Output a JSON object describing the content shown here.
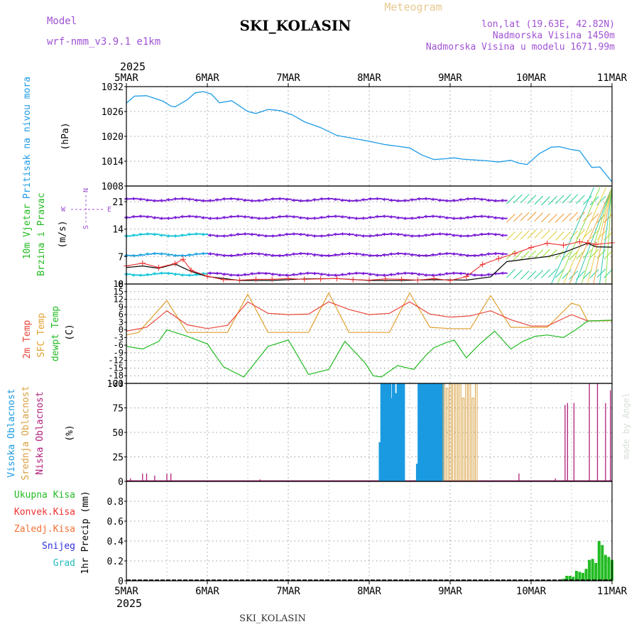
{
  "header": {
    "model_label": "Model",
    "model_name": "wrf-nmm_v3.9.1 e1km",
    "title": "SKI_KOLASIN",
    "subtitle": "Meteogram",
    "lonlat": "lon,lat (19.63E, 42.82N)",
    "elevation": "Nadmorska Visina 1450m",
    "model_elevation": "Nadmorska Visina u modelu 1671.99m",
    "credit": "made by Angel",
    "footer": "SKI_KOLASIN"
  },
  "colors": {
    "pressure": "#1e9be6",
    "wind_speed": "#ee3030",
    "wind_gust_line": "#000000",
    "wind_arrows": "#7a1fd6",
    "t2m": "#e8473a",
    "sfc_temp": "#e0a030",
    "dewpoint": "#22bb22",
    "high_cloud": "#1a9ae0",
    "mid_cloud": "#d9a040",
    "low_cloud": "#b0207a",
    "precip": "#22bb22"
  },
  "chart_data": [
    {
      "type": "line",
      "panel": "pressure",
      "x_tick_labels": [
        "5MAR",
        "6MAR",
        "7MAR",
        "8MAR",
        "9MAR",
        "10MAR",
        "11MAR"
      ],
      "top_year": "2025",
      "ylabel": [
        "Pritisak na nivou mora",
        "(hPa)"
      ],
      "ylim": [
        1008,
        1032
      ],
      "yticks": [
        1008,
        1014,
        1020,
        1026,
        1032
      ],
      "grid": true,
      "series": [
        {
          "name": "Pritisak na nivou mora",
          "x_days": [
            0,
            0.1,
            0.25,
            0.45,
            0.55,
            0.6,
            0.75,
            0.85,
            0.95,
            1.05,
            1.15,
            1.3,
            1.5,
            1.6,
            1.75,
            1.9,
            2.05,
            2.2,
            2.4,
            2.6,
            2.8,
            3.0,
            3.2,
            3.35,
            3.5,
            3.65,
            3.8,
            3.95,
            4.05,
            4.15,
            4.3,
            4.45,
            4.6,
            4.75,
            4.85,
            4.95,
            5.1,
            5.25,
            5.35,
            5.5,
            5.6,
            5.75,
            5.85,
            6.0
          ],
          "values": [
            1028,
            1029.7,
            1029.8,
            1028.5,
            1027.3,
            1027.1,
            1028.8,
            1030.5,
            1030.8,
            1030.2,
            1028.1,
            1028.6,
            1026,
            1025.5,
            1026.5,
            1026.2,
            1025.2,
            1023.5,
            1022.1,
            1020.2,
            1019.5,
            1018.8,
            1018,
            1017.6,
            1017.2,
            1015.5,
            1014.4,
            1014.6,
            1014.8,
            1014.5,
            1014.3,
            1014.1,
            1013.8,
            1014.2,
            1013.5,
            1013.2,
            1015.8,
            1017.4,
            1017.5,
            1016.8,
            1016.5,
            1012.5,
            1012.6,
            1009
          ]
        }
      ]
    },
    {
      "type": "line",
      "panel": "wind",
      "ylabel": [
        "10m Vjetar",
        "Brzina i Pravac",
        "(m/s)"
      ],
      "direction_legend": [
        "N",
        "S",
        "W",
        "E"
      ],
      "ylim": [
        0,
        25
      ],
      "yticks": [
        0,
        7,
        14,
        21
      ],
      "grid": true,
      "series": [
        {
          "name": "10m Vjetar Brzina",
          "x_days": [
            0,
            0.2,
            0.4,
            0.6,
            0.7,
            0.8,
            1.0,
            1.2,
            1.4,
            1.6,
            1.8,
            2.0,
            2.2,
            2.4,
            2.6,
            2.8,
            3.0,
            3.2,
            3.4,
            3.6,
            3.8,
            4.0,
            4.2,
            4.4,
            4.6,
            4.8,
            5.0,
            5.2,
            5.4,
            5.6,
            5.7,
            5.8,
            6.0
          ],
          "values": [
            4.6,
            5.3,
            4.2,
            5.2,
            6.3,
            3.5,
            2,
            1.1,
            1,
            1.2,
            1.2,
            1.4,
            1.2,
            1.3,
            1.4,
            1.1,
            1,
            1.3,
            1.2,
            1,
            1.4,
            0.9,
            1.9,
            5,
            6.5,
            7.8,
            9.3,
            10.4,
            9.9,
            10.8,
            10.5,
            10.1,
            10.5
          ]
        },
        {
          "name": "Udari",
          "x_days": [
            0,
            0.2,
            0.4,
            0.6,
            0.8,
            1.0,
            1.4,
            1.8,
            2.2,
            2.6,
            3.0,
            3.4,
            3.8,
            4.2,
            4.5,
            4.7,
            5.0,
            5.2,
            5.4,
            5.6,
            5.7,
            5.8,
            6.0
          ],
          "values": [
            4.2,
            4.6,
            4,
            5.1,
            3.2,
            1.9,
            0.9,
            0.9,
            1.3,
            1.4,
            0.9,
            0.9,
            1.1,
            1,
            1.8,
            5.7,
            6.5,
            7,
            8,
            9.6,
            10.4,
            9.5,
            9.4
          ]
        }
      ]
    },
    {
      "type": "line",
      "panel": "temperature",
      "ylabel": [
        "2m Temp",
        "SFC Temp",
        "dewpt Temp",
        "(C)"
      ],
      "ylim": [
        -21,
        18
      ],
      "yticks": [
        -21,
        -18,
        -15,
        -12,
        -9,
        -6,
        -3,
        0,
        3,
        6,
        9,
        12,
        15,
        18
      ],
      "grid": true,
      "series": [
        {
          "name": "2m Temp",
          "x_days": [
            0,
            0.25,
            0.5,
            0.75,
            1.0,
            1.25,
            1.5,
            1.75,
            2.0,
            2.25,
            2.5,
            2.75,
            3.0,
            3.25,
            3.5,
            3.75,
            4.0,
            4.25,
            4.5,
            4.75,
            5.0,
            5.2,
            5.5,
            5.7,
            6.0
          ],
          "values": [
            -0.5,
            1,
            7.5,
            2,
            0.5,
            1.8,
            11,
            6.5,
            6,
            6.2,
            11,
            8,
            6,
            6.5,
            11,
            6.2,
            5,
            5.5,
            7.5,
            4,
            1.5,
            1.5,
            6,
            3.5,
            3.8
          ]
        },
        {
          "name": "SFC Temp",
          "x_days": [
            0,
            0.15,
            0.5,
            0.75,
            1.0,
            1.25,
            1.5,
            1.75,
            2.0,
            2.25,
            2.5,
            2.75,
            3.0,
            3.25,
            3.5,
            3.75,
            4.0,
            4.25,
            4.5,
            4.75,
            5.0,
            5.2,
            5.5,
            5.6,
            5.7,
            6.0
          ],
          "values": [
            -2,
            -1,
            11.5,
            -1,
            -1,
            -1,
            14,
            -1,
            -1,
            -1,
            14.5,
            -1,
            -1,
            -1,
            14.5,
            1,
            0.5,
            0.5,
            13.5,
            1,
            1,
            1,
            10.5,
            9.5,
            3.5,
            3.6
          ]
        },
        {
          "name": "dewpt Temp",
          "x_days": [
            0,
            0.2,
            0.4,
            0.5,
            0.75,
            1.0,
            1.2,
            1.45,
            1.75,
            2.0,
            2.05,
            2.25,
            2.5,
            2.7,
            2.95,
            3.05,
            3.15,
            3.35,
            3.55,
            3.7,
            3.8,
            3.95,
            4.05,
            4.2,
            4.35,
            4.55,
            4.75,
            4.9,
            5.05,
            5.2,
            5.4,
            5.55,
            5.7,
            6.0
          ],
          "values": [
            -6.5,
            -7.5,
            -4.5,
            0,
            -2.5,
            -5.5,
            -14.5,
            -18.5,
            -6.5,
            -4,
            -6.5,
            -17.5,
            -15.5,
            -4.5,
            -13,
            -18,
            -18.5,
            -14,
            -15.5,
            -10,
            -7,
            -5,
            -4,
            -11,
            -6,
            -0.5,
            -7.5,
            -4.5,
            -2.5,
            -2,
            -3,
            0,
            3.5,
            3.8
          ]
        }
      ]
    },
    {
      "type": "bar",
      "panel": "cloud",
      "ylabel": [
        "Visoka Oblacnost",
        "Srednja Oblacnost",
        "Niska Oblacnost",
        "(%)"
      ],
      "ylim": [
        0,
        100
      ],
      "yticks": [
        0,
        25,
        50,
        75,
        100
      ],
      "grid": true,
      "series": [
        {
          "name": "Visoka Oblacnost",
          "x_days": [
            3.14,
            3.16,
            3.18,
            3.2,
            3.22,
            3.25,
            3.28,
            3.3,
            3.33,
            3.36,
            3.38,
            3.42,
            3.6,
            3.62,
            3.64,
            3.66,
            3.68,
            3.7,
            3.72,
            3.74,
            3.76,
            3.78,
            3.8,
            3.82,
            3.84,
            3.86,
            3.88,
            3.9
          ],
          "values": [
            40,
            100,
            95,
            100,
            100,
            100,
            85,
            100,
            90,
            100,
            100,
            100,
            18,
            100,
            100,
            100,
            95,
            100,
            100,
            95,
            100,
            100,
            100,
            100,
            100,
            100,
            95,
            100
          ]
        },
        {
          "name": "Srednja Oblacnost",
          "x_days": [
            3.92,
            3.96,
            4.0,
            4.04,
            4.08,
            4.12,
            4.16,
            4.2,
            4.24,
            4.28,
            4.32
          ],
          "values": [
            100,
            95,
            100,
            100,
            100,
            100,
            85,
            100,
            100,
            85,
            100
          ]
        },
        {
          "name": "Niska Oblacnost",
          "x_days": [
            0.05,
            0.2,
            0.25,
            0.35,
            0.5,
            0.55,
            1.65,
            4.85,
            5.3,
            5.42,
            5.45,
            5.53,
            5.72,
            5.82,
            5.92,
            5.98
          ],
          "values": [
            3,
            8,
            8,
            6,
            8,
            8,
            2,
            8,
            3,
            78,
            80,
            80,
            100,
            100,
            80,
            93
          ]
        }
      ]
    },
    {
      "type": "bar",
      "panel": "precip",
      "ylabel": [
        "1hr Precip (mm)"
      ],
      "legend": [
        "Ukupna Kisa",
        "Konvek.Kisa",
        "Zaledj.Kisa",
        "Snijeg",
        "Grad"
      ],
      "legend_colors": [
        "#22bb22",
        "#ee3030",
        "#f07030",
        "#3030dd",
        "#22bbbb"
      ],
      "ylim": [
        0,
        1
      ],
      "yticks": [
        0,
        0.2,
        0.4,
        0.6,
        0.8
      ],
      "grid": true,
      "x_tick_labels": [
        "5MAR",
        "6MAR",
        "7MAR",
        "8MAR",
        "9MAR",
        "10MAR",
        "11MAR"
      ],
      "bottom_year": "2025",
      "series": [
        {
          "name": "Ukupna Kisa",
          "x_days": [
            5.4,
            5.44,
            5.48,
            5.52,
            5.56,
            5.6,
            5.64,
            5.68,
            5.72,
            5.76,
            5.8,
            5.84,
            5.88,
            5.92,
            5.96,
            6.0
          ],
          "values": [
            0.02,
            0.05,
            0.05,
            0.04,
            0.1,
            0.09,
            0.08,
            0.12,
            0.21,
            0.22,
            0.18,
            0.4,
            0.36,
            0.26,
            0.24,
            0.21
          ]
        }
      ]
    }
  ]
}
